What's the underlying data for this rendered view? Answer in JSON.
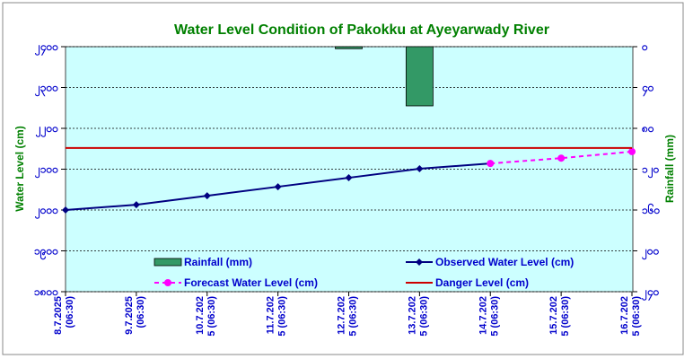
{
  "chart_data": {
    "type": "combo",
    "title": "Water Level Condition of Pakokku at Ayeyarwady River",
    "y_label": "Water Level (cm)",
    "y2_label": "Rainfall (mm)",
    "categories": [
      [
        "8.7.2025",
        "(06:30)"
      ],
      [
        "9.7.2025",
        "(06:30)"
      ],
      [
        "10.7.202",
        "5 (06:30)"
      ],
      [
        "11.7.202",
        "5 (06:30)"
      ],
      [
        "12.7.202",
        "5 (06:30)"
      ],
      [
        "13.7.202",
        "5 (06:30)"
      ],
      [
        "14.7.202",
        "5 (06:30)"
      ],
      [
        "15.7.202",
        "5 (06:30)"
      ],
      [
        "16.7.202",
        "5 (06:30)"
      ]
    ],
    "ylim": [
      1800,
      2400
    ],
    "yticks": [
      {
        "value": 1800,
        "label": "၁၈၀၀"
      },
      {
        "value": 1900,
        "label": "၁၉၀၀"
      },
      {
        "value": 2000,
        "label": "၂၀၀၀"
      },
      {
        "value": 2100,
        "label": "၂၁၀၀"
      },
      {
        "value": 2200,
        "label": "၂၂၀၀"
      },
      {
        "value": 2300,
        "label": "၂၃၀၀"
      },
      {
        "value": 2400,
        "label": "၂၄၀၀"
      }
    ],
    "y2lim": [
      0,
      240
    ],
    "y2_reversed": true,
    "y2ticks": [
      {
        "value": 0,
        "label": "၀"
      },
      {
        "value": 40,
        "label": "၄၀"
      },
      {
        "value": 80,
        "label": "၈၀"
      },
      {
        "value": 120,
        "label": "၁၂၀"
      },
      {
        "value": 160,
        "label": "၁၆၀"
      },
      {
        "value": 200,
        "label": "၂၀၀"
      },
      {
        "value": 240,
        "label": "၂၄၀"
      }
    ],
    "grid": true,
    "series": [
      {
        "name": "Rainfall (mm)",
        "type": "bar",
        "axis": "y2",
        "color": "#339966",
        "values": [
          null,
          null,
          null,
          null,
          2,
          58,
          null,
          null,
          null
        ]
      },
      {
        "name": "Observed Water Level (cm)",
        "type": "line",
        "marker": "diamond",
        "color": "#000080",
        "values": [
          2000,
          2013,
          2035,
          2057,
          2079,
          2101,
          2114,
          null,
          null
        ]
      },
      {
        "name": "Forecast Water Level (cm)",
        "type": "line",
        "marker": "circle",
        "dashed": true,
        "color": "#ff00ff",
        "values": [
          null,
          null,
          null,
          null,
          null,
          null,
          2114,
          2127,
          2143
        ]
      },
      {
        "name": "Danger Level (cm)",
        "type": "line",
        "color": "#cc0000",
        "values": [
          2152,
          2152,
          2152,
          2152,
          2152,
          2152,
          2152,
          2152,
          2152
        ]
      }
    ]
  }
}
